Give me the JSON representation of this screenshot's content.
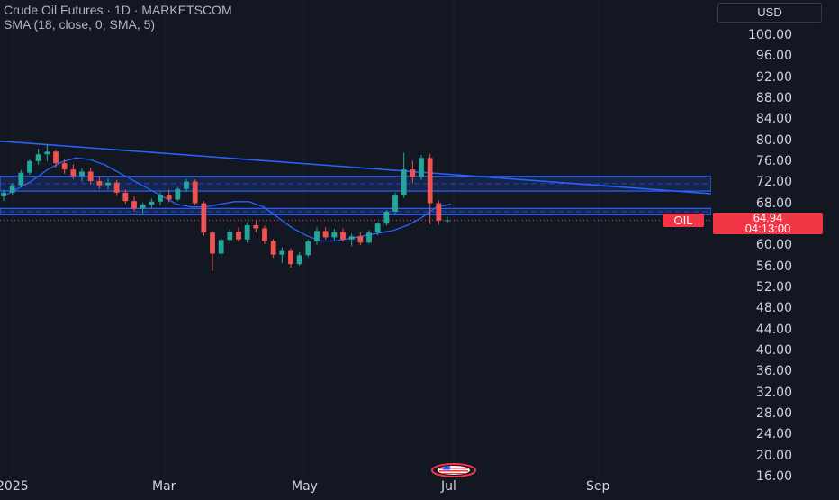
{
  "header": {
    "title": "Crude Oil Futures · 1D · MARKETSCOM",
    "indicator": "SMA (18, close, 0, SMA, 5)"
  },
  "currency_button": "USD",
  "price_axis": {
    "ticks": [
      "100.00",
      "96.00",
      "92.00",
      "88.00",
      "84.00",
      "80.00",
      "76.00",
      "72.00",
      "68.00",
      "64.00",
      "60.00",
      "56.00",
      "52.00",
      "48.00",
      "44.00",
      "40.00",
      "36.00",
      "32.00",
      "28.00",
      "24.00",
      "20.00",
      "16.00"
    ]
  },
  "time_axis": {
    "labels": [
      "2025",
      "Mar",
      "May",
      "Jul",
      "Sep"
    ]
  },
  "symbol_tag": "OIL",
  "last_price": "64.94",
  "countdown": "04:13:00",
  "colors": {
    "background": "#131722",
    "up": "#26a69a",
    "down": "#ef5350",
    "drawing": "#2962ff",
    "sma": "#2962ff",
    "price_tag": "#f23645"
  },
  "chart_data": {
    "type": "candlestick",
    "title": "Crude Oil Futures · 1D · MARKETSCOM",
    "ylim": [
      16,
      100
    ],
    "y_scale": "linear",
    "grid": false,
    "y_ticks": [
      100,
      96,
      92,
      88,
      84,
      80,
      76,
      72,
      68,
      64,
      60,
      56,
      52,
      48,
      44,
      40,
      36,
      32,
      28,
      24,
      20,
      16
    ],
    "x_ticks": [
      "2025",
      "Mar",
      "May",
      "Jul",
      "Sep"
    ],
    "last_price": 64.94,
    "series": [
      {
        "name": "SMA (18, close, 0, SMA, 5)",
        "type": "line",
        "values": [
          69.5,
          71.0,
          72.5,
          74.5,
          76.0,
          76.8,
          76.5,
          75.5,
          74.0,
          72.5,
          71.0,
          69.5,
          68.0,
          67.5,
          67.5,
          68.0,
          68.5,
          68.5,
          67.5,
          65.5,
          63.5,
          62.0,
          61.0,
          61.0,
          61.5,
          62.0,
          62.5,
          63.0,
          64.0,
          65.5,
          67.5,
          68.0
        ]
      },
      {
        "name": "trendline",
        "type": "line",
        "values": [
          80.0,
          70.0
        ]
      },
      {
        "name": "resistance-zone",
        "type": "band",
        "values": [
          70.5,
          73.3
        ]
      },
      {
        "name": "support-zone",
        "type": "band",
        "values": [
          66.0,
          67.2
        ]
      }
    ],
    "ohlc": [
      [
        69.5,
        70.8,
        68.6,
        70.2
      ],
      [
        70.2,
        72.0,
        69.8,
        71.6
      ],
      [
        71.6,
        74.5,
        71.2,
        74.0
      ],
      [
        74.0,
        76.5,
        73.6,
        76.2
      ],
      [
        76.2,
        78.6,
        75.5,
        77.5
      ],
      [
        77.5,
        79.4,
        76.2,
        78.0
      ],
      [
        78.0,
        78.3,
        75.0,
        75.8
      ],
      [
        75.8,
        76.5,
        73.8,
        74.6
      ],
      [
        74.6,
        75.6,
        72.8,
        73.4
      ],
      [
        73.4,
        74.8,
        72.3,
        74.2
      ],
      [
        74.2,
        74.9,
        71.8,
        72.4
      ],
      [
        72.4,
        73.4,
        70.9,
        71.6
      ],
      [
        71.6,
        72.9,
        70.8,
        72.1
      ],
      [
        72.1,
        72.6,
        69.6,
        70.2
      ],
      [
        70.2,
        70.8,
        68.1,
        68.6
      ],
      [
        68.6,
        69.4,
        66.6,
        67.2
      ],
      [
        67.2,
        68.3,
        66.1,
        67.9
      ],
      [
        67.9,
        69.1,
        67.3,
        68.5
      ],
      [
        68.5,
        70.3,
        67.8,
        69.8
      ],
      [
        69.8,
        70.8,
        68.4,
        68.9
      ],
      [
        68.9,
        71.3,
        68.6,
        70.9
      ],
      [
        70.9,
        72.8,
        70.3,
        72.3
      ],
      [
        72.3,
        72.7,
        67.9,
        68.2
      ],
      [
        68.2,
        68.6,
        62.0,
        62.6
      ],
      [
        62.6,
        62.9,
        55.3,
        58.6
      ],
      [
        58.6,
        61.6,
        57.8,
        61.2
      ],
      [
        61.2,
        63.3,
        60.4,
        62.8
      ],
      [
        62.8,
        63.6,
        60.9,
        61.3
      ],
      [
        61.3,
        64.6,
        60.7,
        64.0
      ],
      [
        64.0,
        64.9,
        62.6,
        63.4
      ],
      [
        63.4,
        63.9,
        60.4,
        61.0
      ],
      [
        61.0,
        61.4,
        57.8,
        58.4
      ],
      [
        58.4,
        59.8,
        56.8,
        59.1
      ],
      [
        59.1,
        59.6,
        55.9,
        56.6
      ],
      [
        56.6,
        58.9,
        56.3,
        58.3
      ],
      [
        58.3,
        61.3,
        57.9,
        60.9
      ],
      [
        60.9,
        63.6,
        60.3,
        62.9
      ],
      [
        62.9,
        63.6,
        61.3,
        61.7
      ],
      [
        61.7,
        63.3,
        61.1,
        62.7
      ],
      [
        62.7,
        63.4,
        60.9,
        61.3
      ],
      [
        61.3,
        62.4,
        60.0,
        61.9
      ],
      [
        61.9,
        62.6,
        60.2,
        60.7
      ],
      [
        60.7,
        63.1,
        60.5,
        62.6
      ],
      [
        62.6,
        64.6,
        62.1,
        64.3
      ],
      [
        64.3,
        66.9,
        63.9,
        66.6
      ],
      [
        66.6,
        70.2,
        66.1,
        69.8
      ],
      [
        69.8,
        77.8,
        69.2,
        74.6
      ],
      [
        74.6,
        76.3,
        72.0,
        73.2
      ],
      [
        73.2,
        77.3,
        72.6,
        76.8
      ],
      [
        76.8,
        77.6,
        64.2,
        68.2
      ],
      [
        68.2,
        68.7,
        64.1,
        64.9
      ],
      [
        64.9,
        65.6,
        64.3,
        64.94
      ]
    ]
  }
}
